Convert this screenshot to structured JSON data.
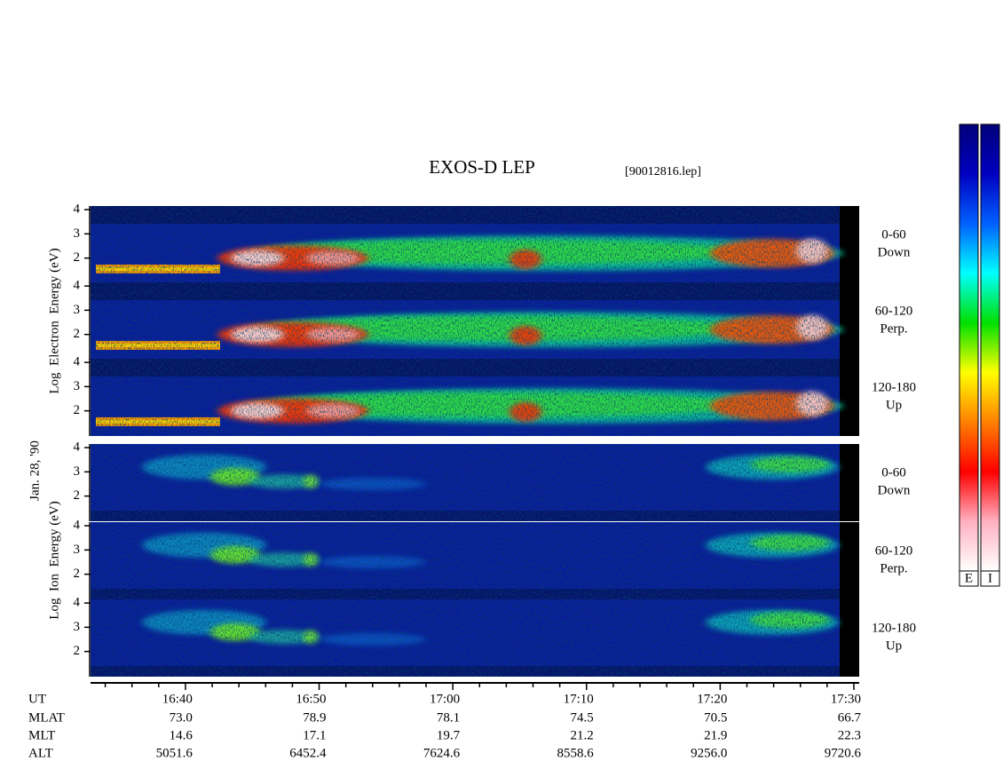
{
  "chart_data": {
    "type": "spectrogram",
    "title": "EXOS-D LEP",
    "subtitle": "[90012816.lep]",
    "date_label": "Jan. 28, '90",
    "xlim": [
      992.9,
      1050.4
    ],
    "xticks": [
      {
        "value": 1000,
        "label": "16:40"
      },
      {
        "value": 1010,
        "label": "16:50"
      },
      {
        "value": 1020,
        "label": "17:00"
      },
      {
        "value": 1030,
        "label": "17:10"
      },
      {
        "value": 1040,
        "label": "17:20"
      },
      {
        "value": 1050,
        "label": "17:30"
      }
    ],
    "xminorticks": [
      994,
      996,
      998,
      1002,
      1004,
      1006,
      1008,
      1012,
      1014,
      1016,
      1018,
      1022,
      1024,
      1026,
      1028,
      1032,
      1034,
      1036,
      1038,
      1042,
      1044,
      1046,
      1048
    ],
    "ylim": [
      0.96,
      4.15
    ],
    "yticks": [
      2,
      3,
      4
    ],
    "groups": [
      {
        "ylabel": "Log  Electron  Energy (eV)",
        "panels": [
          {
            "label": [
              "0-60",
              "Down"
            ]
          },
          {
            "label": [
              "60-120",
              "Perp."
            ]
          },
          {
            "label": [
              "120-180",
              "Up"
            ]
          }
        ]
      },
      {
        "ylabel": "Log  Ion  Energy (eV)",
        "panels": [
          {
            "label": [
              "0-60",
              "Down"
            ]
          },
          {
            "label": [
              "60-120",
              "Perp."
            ]
          },
          {
            "label": [
              "120-180",
              "Up"
            ]
          }
        ]
      }
    ],
    "colorbar": {
      "labels": [
        "E",
        "I"
      ],
      "colors": [
        "#ffffff",
        "#ffb0c0",
        "#ff0000",
        "#ff8000",
        "#ffff00",
        "#00e000",
        "#00ffff",
        "#0060ff",
        "#0000c0",
        "#00007a"
      ]
    },
    "ephemeris": {
      "labels": [
        "UT",
        "MLAT",
        "MLT",
        "ALT"
      ],
      "rows": [
        [
          "73.0",
          "78.9",
          "78.1",
          "74.5",
          "70.5",
          "66.7"
        ],
        [
          "14.6",
          "17.1",
          "19.7",
          "21.2",
          "21.9",
          "22.3"
        ],
        [
          "5051.6",
          "6452.4",
          "7624.6",
          "8558.6",
          "9256.0",
          "9720.6"
        ]
      ]
    }
  }
}
